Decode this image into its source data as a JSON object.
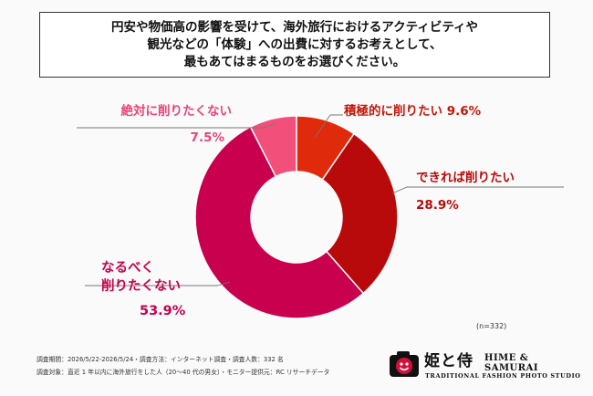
{
  "question": "円安や物価高の影響を受けて、海外旅行におけるアクティビティや\n観光などの「体験」への出費に対するお考えとして、\n最もあてはまるものをお選びください。",
  "sample_size": "(n=332)",
  "survey_info": {
    "line1": "調査期間：2026/5/22-2026/5/24・調査方法：インターネット調査・調査人数：332 名",
    "line2": "調査対象：直近 1 年以内に海外旅行をした人（20～40 代の男女）・モニター提供元：RC リサーチデータ"
  },
  "logo": {
    "brand_ja": "姫と侍",
    "brand_en": "HIME & SAMURAI",
    "tagline": "TRADITIONAL FASHION PHOTO STUDIO"
  },
  "colors": {
    "accent": "#c8003c",
    "slice1": "#e02a0c",
    "slice2": "#b80a0a",
    "slice3": "#c8004e",
    "slice4": "#f2507a"
  },
  "chart_data": {
    "type": "pie",
    "donut": true,
    "start_angle_deg": 0,
    "slices": [
      {
        "label": "積極的に削りたい",
        "value": 9.6,
        "display": "9.6%",
        "color": "#e02a0c",
        "label_color": "#c2180a"
      },
      {
        "label": "できれば削りたい",
        "value": 28.9,
        "display": "28.9%",
        "color": "#b80a0a",
        "label_color": "#b80a0a"
      },
      {
        "label": "なるべく\n削りたくない",
        "value": 53.9,
        "display": "53.9%",
        "color": "#c8004e",
        "label_color": "#c8004e"
      },
      {
        "label": "絶対に削りたくない",
        "value": 7.5,
        "display": "7.5%",
        "color": "#f2507a",
        "label_color": "#e8447a"
      }
    ]
  }
}
